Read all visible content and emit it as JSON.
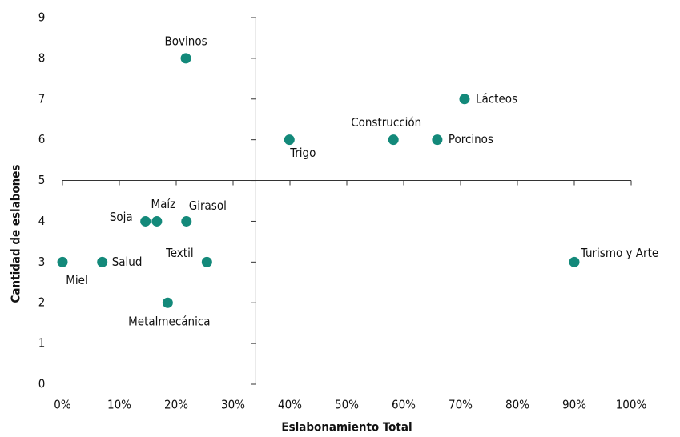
{
  "chart_data": {
    "type": "scatter",
    "xlabel": "Eslabonamiento Total",
    "ylabel": "Cantidad de eslabones",
    "color": "#13897a",
    "series": [
      {
        "name": null,
        "labels": [
          "Bovinos",
          "Lácteos",
          "Construcción",
          "Porcinos",
          "Trigo",
          "Soja",
          "Maíz",
          "Girasol",
          "Miel",
          "Salud",
          "Textil",
          "Metalmecánica",
          "Turismo y Arte"
        ],
        "x": [
          21.7,
          70.7,
          58.2,
          65.9,
          39.9,
          14.6,
          16.6,
          21.8,
          0,
          7.0,
          25.4,
          18.5,
          90.0
        ],
        "values": [
          8,
          7,
          6,
          6,
          6,
          4,
          4,
          4,
          3,
          3,
          3,
          2,
          3
        ]
      }
    ],
    "xlim": [
      0,
      100
    ],
    "xticks": [
      {
        "value": 0,
        "label": "0%"
      },
      {
        "value": 10,
        "label": "10%"
      },
      {
        "value": 20,
        "label": "20%"
      },
      {
        "value": 30,
        "label": "30%"
      },
      {
        "value": 40,
        "label": "40%"
      },
      {
        "value": 50,
        "label": "50%"
      },
      {
        "value": 60,
        "label": "60%"
      },
      {
        "value": 70,
        "label": "70%"
      },
      {
        "value": 80,
        "label": "80%"
      },
      {
        "value": 90,
        "label": "90%"
      },
      {
        "value": 100,
        "label": "100%"
      }
    ],
    "ylim": [
      0,
      9
    ],
    "yticks": [
      0,
      1,
      2,
      3,
      4,
      5,
      6,
      7,
      8,
      9
    ],
    "y_axis_at_x": 34,
    "x_axis_at_y": 5,
    "grid": false
  }
}
